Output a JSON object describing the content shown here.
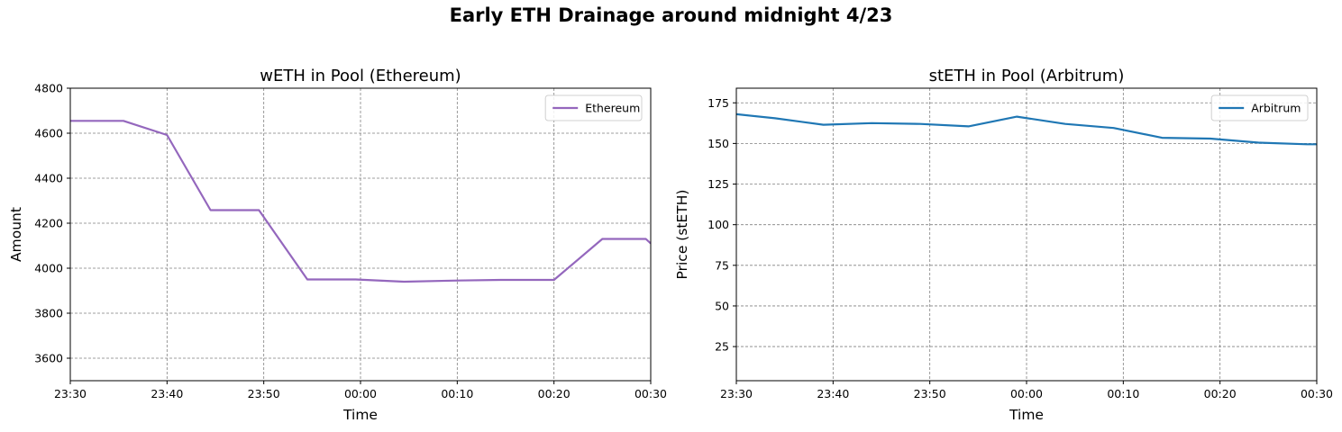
{
  "figure": {
    "suptitle": "Early ETH Drainage around midnight 4/23"
  },
  "chart_data": [
    {
      "type": "line",
      "title": "wETH in Pool (Ethereum)",
      "xlabel": "Time",
      "ylabel": "Amount",
      "xlim": [
        "23:30",
        "00:30"
      ],
      "ylim": [
        3500,
        4800
      ],
      "xticks": [
        "23:30",
        "23:40",
        "23:50",
        "00:00",
        "00:10",
        "00:20",
        "00:30"
      ],
      "yticks": [
        3600,
        3800,
        4000,
        4200,
        4400,
        4600,
        4800
      ],
      "grid": true,
      "legend": "top-right",
      "series": [
        {
          "name": "Ethereum",
          "color": "#9467bd",
          "x": [
            "23:30",
            "23:35.5",
            "23:40",
            "23:44.5",
            "23:49.5",
            "23:54.5",
            "23:59.5",
            "00:04.5",
            "00:09.5",
            "00:14.5",
            "00:20",
            "00:25",
            "00:29.5",
            "00:30"
          ],
          "values": [
            4655,
            4655,
            4592,
            4258,
            4258,
            3950,
            3950,
            3940,
            3945,
            3948,
            3948,
            4130,
            4130,
            4110
          ]
        }
      ]
    },
    {
      "type": "line",
      "title": "stETH in Pool (Arbitrum)",
      "xlabel": "Time",
      "ylabel": "Price (stETH)",
      "xlim": [
        "23:30",
        "00:30"
      ],
      "ylim": [
        4,
        184
      ],
      "xticks": [
        "23:30",
        "23:40",
        "23:50",
        "00:00",
        "00:10",
        "00:20",
        "00:30"
      ],
      "yticks": [
        25,
        50,
        75,
        100,
        125,
        150,
        175
      ],
      "grid": true,
      "legend": "top-right",
      "series": [
        {
          "name": "Arbitrum",
          "color": "#1f77b4",
          "x": [
            "23:30",
            "23:34",
            "23:39",
            "23:44",
            "23:49",
            "23:54",
            "23:59",
            "00:04",
            "00:09",
            "00:14",
            "00:19",
            "00:24",
            "00:29",
            "00:30"
          ],
          "values": [
            168,
            165.5,
            161.5,
            162.5,
            162,
            160.5,
            166.5,
            162,
            159.5,
            153.5,
            153,
            150.5,
            149.5,
            149.5
          ]
        }
      ]
    }
  ]
}
